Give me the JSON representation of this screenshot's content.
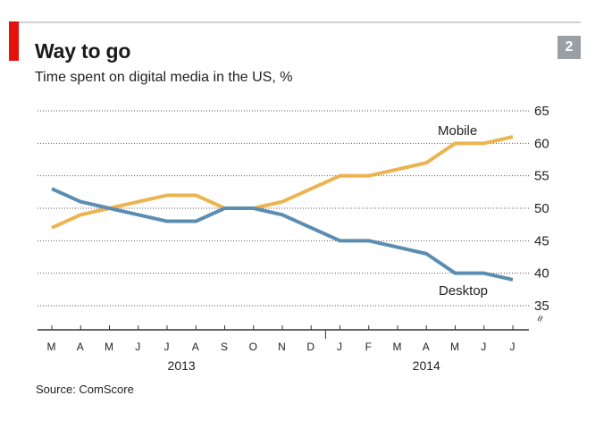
{
  "header": {
    "title": "Way to go",
    "subtitle": "Time spent on digital media in the US, %",
    "chart_number": "2"
  },
  "source": "Source: ComScore",
  "colors": {
    "mobile": "#ebb450",
    "desktop": "#5b8db3",
    "accent": "#e3120b",
    "grid": "#555555",
    "badge": "#9a9fa6"
  },
  "chart_data": {
    "type": "line",
    "title": "Way to go",
    "subtitle": "Time spent on digital media in the US, %",
    "xlabel": "",
    "ylabel": "",
    "x": [
      "M",
      "A",
      "M",
      "J",
      "J",
      "A",
      "S",
      "O",
      "N",
      "D",
      "J",
      "F",
      "M",
      "A",
      "M",
      "J",
      "J"
    ],
    "year_labels": [
      {
        "label": "2013",
        "span": [
          0,
          9
        ]
      },
      {
        "label": "2014",
        "span": [
          10,
          16
        ]
      }
    ],
    "ylim": [
      35,
      65
    ],
    "yticks": [
      35,
      40,
      45,
      50,
      55,
      60,
      65
    ],
    "axis_break": true,
    "grid": true,
    "series": [
      {
        "name": "Mobile",
        "color": "#ebb450",
        "values": [
          47,
          49,
          50,
          51,
          52,
          52,
          50,
          50,
          51,
          53,
          55,
          55,
          56,
          57,
          60,
          60,
          61
        ]
      },
      {
        "name": "Desktop",
        "color": "#5b8db3",
        "values": [
          53,
          51,
          50,
          49,
          48,
          48,
          50,
          50,
          49,
          47,
          45,
          45,
          44,
          43,
          40,
          40,
          39
        ]
      }
    ],
    "legend": "inline labels"
  }
}
